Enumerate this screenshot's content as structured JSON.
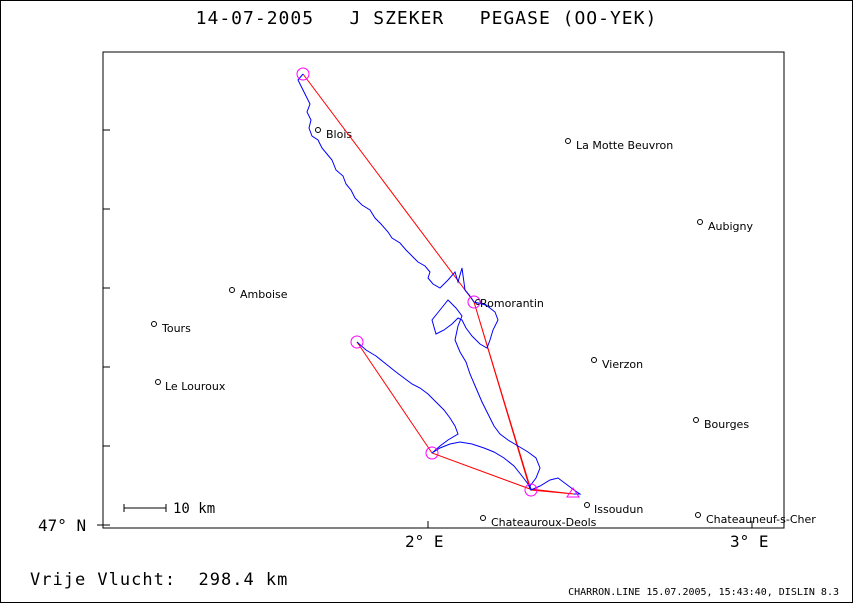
{
  "title": "14-07-2005   J SZEKER   PEGASE (OO-YEK)",
  "axis": {
    "y_tick_label": "47° N",
    "x_tick_labels": [
      "2° E",
      "3° E"
    ]
  },
  "scale_bar_label": "10 km",
  "distance_text": "Vrije Vlucht:  298.4 km",
  "footer": "CHARRON.LINE 15.07.2005, 15:43:40, DISLIN 8.3",
  "colors": {
    "track": "#0000ff",
    "task": "#ff0000",
    "turnpoint": "#ff00ff"
  },
  "cities": [
    {
      "name": "Blois"
    },
    {
      "name": "La Motte Beuvron"
    },
    {
      "name": "Aubigny"
    },
    {
      "name": "Amboise"
    },
    {
      "name": "Romorantin"
    },
    {
      "name": "Tours"
    },
    {
      "name": "Vierzon"
    },
    {
      "name": "Le Louroux"
    },
    {
      "name": "Bourges"
    },
    {
      "name": "Issoudun"
    },
    {
      "name": "Chateauroux-Deols"
    },
    {
      "name": "Chateauneuf-s-Cher"
    }
  ]
}
